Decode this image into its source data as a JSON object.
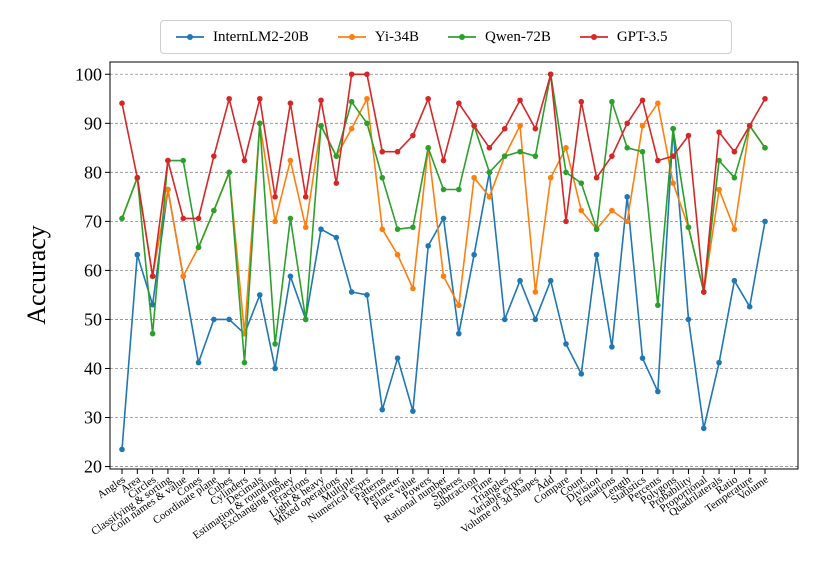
{
  "chart_data": {
    "type": "line",
    "title": "",
    "xlabel": "",
    "ylabel": "Accuracy",
    "ylim": [
      19.5,
      102.5
    ],
    "yticks": [
      20,
      30,
      40,
      50,
      60,
      70,
      80,
      90,
      100
    ],
    "grid": "horizontal-dashed",
    "legend_position": "top-center",
    "categories": [
      "Angles",
      "Area",
      "Circles",
      "Classifying & sorting",
      "Coin names & value",
      "Cones",
      "Coordinate plane",
      "Cubes",
      "Cylinders",
      "Decimals",
      "Estimation & rounding",
      "Exchanging money",
      "Fractions",
      "Light & heavy",
      "Mixed operations",
      "Multiple",
      "Numerical exprs",
      "Patterns",
      "Perimeter",
      "Place value",
      "Powers",
      "Rational number",
      "Spheres",
      "Subtraction",
      "Time",
      "Triangles",
      "Variable exprs",
      "Volume of 3d shapes",
      "Add",
      "Compare",
      "Count",
      "Division",
      "Equations",
      "Length",
      "Statistics",
      "Percents",
      "Polygons",
      "Probability",
      "Proportional",
      "Quadrilaterals",
      "Ratio",
      "Temperature",
      "Volume"
    ],
    "series": [
      {
        "name": "InternLM2-20B",
        "color": "#1f77b4",
        "values": [
          23.5,
          63.2,
          53.0,
          76.5,
          58.8,
          41.2,
          50.0,
          50.0,
          47.1,
          55.0,
          40.0,
          58.8,
          50.0,
          68.4,
          66.7,
          55.6,
          55.0,
          31.6,
          42.1,
          31.3,
          65.0,
          70.6,
          47.1,
          63.2,
          80.0,
          50.0,
          57.9,
          50.0,
          57.9,
          45.0,
          38.9,
          63.2,
          44.4,
          75.0,
          42.1,
          35.3,
          88.9,
          50.0,
          27.8,
          41.2,
          57.9,
          52.6,
          70.0
        ]
      },
      {
        "name": "Yi-34B",
        "color": "#ff7f0e",
        "values": [
          70.6,
          78.9,
          58.8,
          76.5,
          58.8,
          64.7,
          72.2,
          80.0,
          47.1,
          90.0,
          70.0,
          82.4,
          68.8,
          89.5,
          83.3,
          88.9,
          95.0,
          68.4,
          63.2,
          56.3,
          85.0,
          58.8,
          52.9,
          78.9,
          75.0,
          83.3,
          89.5,
          55.6,
          78.9,
          85.0,
          72.2,
          68.4,
          72.2,
          70.0,
          89.5,
          94.1,
          77.8,
          68.8,
          55.6,
          76.5,
          68.4,
          89.5,
          85.0
        ]
      },
      {
        "name": "Qwen-72B",
        "color": "#2ca02c",
        "values": [
          70.6,
          78.9,
          47.1,
          82.4,
          82.4,
          64.7,
          72.2,
          80.0,
          41.2,
          90.0,
          45.0,
          70.6,
          50.0,
          89.5,
          83.3,
          94.4,
          90.0,
          78.9,
          68.4,
          68.8,
          85.0,
          76.5,
          76.5,
          89.5,
          80.0,
          83.3,
          84.2,
          83.3,
          100.0,
          80.0,
          77.8,
          68.4,
          94.4,
          85.0,
          84.2,
          52.9,
          88.9,
          68.8,
          55.6,
          82.4,
          78.9,
          89.5,
          85.0
        ]
      },
      {
        "name": "GPT-3.5",
        "color": "#d62728",
        "values": [
          94.1,
          78.9,
          58.8,
          82.4,
          70.6,
          70.6,
          83.3,
          95.0,
          82.4,
          95.0,
          75.0,
          94.1,
          75.0,
          94.7,
          77.8,
          100.0,
          100.0,
          84.2,
          84.2,
          87.5,
          95.0,
          82.4,
          94.1,
          89.5,
          85.0,
          88.9,
          94.7,
          88.9,
          100.0,
          70.0,
          94.4,
          78.9,
          83.3,
          90.0,
          94.7,
          82.4,
          83.3,
          87.5,
          55.6,
          88.2,
          84.2,
          89.5,
          95.0
        ]
      }
    ]
  }
}
